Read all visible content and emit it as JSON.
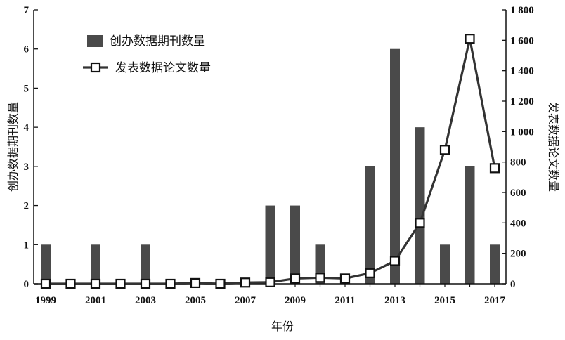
{
  "chart_data": {
    "type": "bar+line",
    "x": [
      1999,
      2000,
      2001,
      2002,
      2003,
      2004,
      2005,
      2006,
      2007,
      2008,
      2009,
      2010,
      2011,
      2012,
      2013,
      2014,
      2015,
      2016,
      2017
    ],
    "x_tick_labels": [
      "1999",
      "2001",
      "2003",
      "2005",
      "2007",
      "2009",
      "2011",
      "2013",
      "2015",
      "2017"
    ],
    "xlabel": "年份",
    "y_left": {
      "label": "创办数据期刊数量",
      "lim": [
        0,
        7
      ],
      "ticks": [
        "0",
        "1",
        "2",
        "3",
        "4",
        "5",
        "6",
        "7"
      ]
    },
    "y_right": {
      "label": "发表数据论文数量",
      "lim": [
        0,
        1800
      ],
      "ticks": [
        "0",
        "200",
        "400",
        "600",
        "800",
        "1 000",
        "1 200",
        "1 400",
        "1 600",
        "1 800"
      ]
    },
    "series": [
      {
        "name": "创办数据期刊数量",
        "type": "bar",
        "axis": "left",
        "color": "#4a4a4a",
        "values": [
          1,
          0,
          1,
          0,
          1,
          0,
          0,
          0,
          0,
          2,
          2,
          1,
          0,
          3,
          6,
          4,
          1,
          3,
          1
        ]
      },
      {
        "name": "发表数据论文数量",
        "type": "line",
        "axis": "right",
        "color": "#333333",
        "marker": "hollow-square",
        "values": [
          0,
          0,
          0,
          0,
          0,
          0,
          5,
          0,
          8,
          10,
          35,
          40,
          35,
          70,
          150,
          400,
          880,
          1610,
          760
        ]
      }
    ],
    "legend_position": "top-left",
    "grid": false
  }
}
